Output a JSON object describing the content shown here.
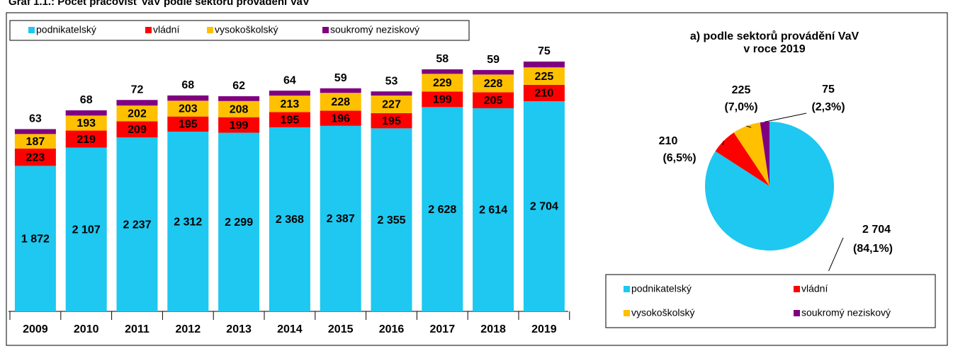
{
  "title": "Graf 1.1.: Počet pracovišť VaV podle sektorů provádění VaV",
  "chart_data": [
    {
      "type": "bar",
      "stacked": true,
      "categories": [
        "2009",
        "2010",
        "2011",
        "2012",
        "2013",
        "2014",
        "2015",
        "2016",
        "2017",
        "2018",
        "2019"
      ],
      "series": [
        {
          "name": "podnikatelský",
          "color": "#1ec8f0",
          "values": [
            1872,
            2107,
            2237,
            2312,
            2299,
            2368,
            2387,
            2355,
            2628,
            2614,
            2704
          ],
          "value_labels": [
            "1 872",
            "2 107",
            "2 237",
            "2 312",
            "2 299",
            "2 368",
            "2 387",
            "2 355",
            "2 628",
            "2 614",
            "2 704"
          ]
        },
        {
          "name": "vládní",
          "color": "#ff0000",
          "values": [
            223,
            219,
            209,
            195,
            199,
            195,
            196,
            195,
            199,
            205,
            210
          ]
        },
        {
          "name": "vysokoškolský",
          "color": "#ffc000",
          "values": [
            187,
            193,
            202,
            203,
            208,
            213,
            228,
            227,
            229,
            228,
            225
          ]
        },
        {
          "name": "soukromý neziskový",
          "color": "#800080",
          "values": [
            63,
            68,
            72,
            68,
            62,
            64,
            59,
            53,
            58,
            59,
            75
          ]
        }
      ]
    },
    {
      "type": "pie",
      "title": [
        "a) podle sektorů provádění VaV",
        "v roce 2019"
      ],
      "categories": [
        "podnikatelský",
        "vládní",
        "vysokoškolský",
        "soukromý neziskový"
      ],
      "colors": [
        "#1ec8f0",
        "#ff0000",
        "#ffc000",
        "#800080"
      ],
      "values": [
        2704,
        210,
        225,
        75
      ],
      "value_labels": [
        "2 704",
        "210",
        "225",
        "75"
      ],
      "percents": [
        84.1,
        6.5,
        7.0,
        2.3
      ],
      "percent_labels": [
        "(84,1%)",
        "(6,5%)",
        "(7,0%)",
        "(2,3%)"
      ]
    }
  ]
}
